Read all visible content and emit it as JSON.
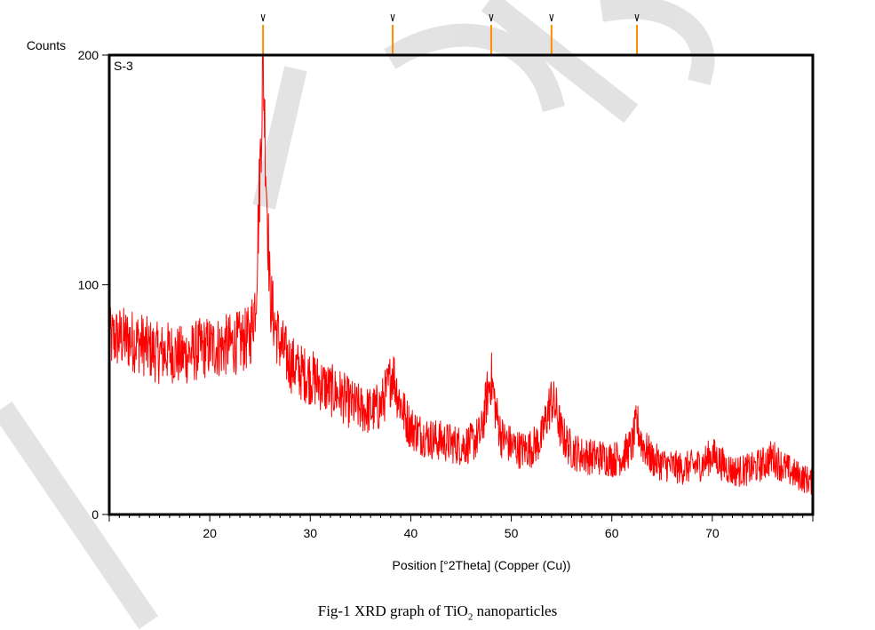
{
  "chart_data": {
    "type": "line",
    "sample_label": "S-3",
    "ylabel": "Counts",
    "xlabel": "Position [°2Theta] (Copper (Cu))",
    "xlim": [
      10,
      80
    ],
    "ylim": [
      0,
      200
    ],
    "x_ticks": [
      20,
      30,
      40,
      50,
      60,
      70
    ],
    "y_ticks": [
      0,
      100,
      200
    ],
    "line_color": "#ff0000",
    "reference_color": "#ff8c00",
    "reference_peaks": [
      25.3,
      38.2,
      48.0,
      54.0,
      62.5
    ],
    "series": [
      {
        "x": [
          10,
          11,
          12,
          13,
          14,
          15,
          16,
          17,
          18,
          19,
          20,
          21,
          22,
          23,
          24,
          24.6,
          25.0,
          25.3,
          25.6,
          26.0,
          26.5,
          27,
          28,
          29,
          30,
          31,
          32,
          33,
          34,
          35,
          36,
          37,
          37.8,
          38.2,
          38.7,
          39.5,
          40,
          41,
          42,
          43,
          44,
          45,
          46,
          47,
          47.6,
          48.0,
          48.5,
          49,
          50,
          51,
          52,
          53,
          53.6,
          54.0,
          54.5,
          55,
          56,
          57,
          58,
          59,
          60,
          61,
          62,
          62.5,
          63,
          64,
          65,
          66,
          67,
          68,
          69,
          70,
          71,
          72,
          73,
          74,
          75,
          76,
          77,
          78,
          79,
          80
        ],
        "y": [
          76,
          77,
          76,
          75,
          72,
          70,
          71,
          69,
          70,
          72,
          73,
          73,
          74,
          75,
          77,
          95,
          150,
          198,
          150,
          95,
          82,
          74,
          66,
          62,
          60,
          57,
          54,
          52,
          48,
          46,
          45,
          47,
          56,
          63,
          52,
          42,
          38,
          35,
          33,
          32,
          31,
          30,
          31,
          35,
          52,
          60,
          44,
          34,
          30,
          28,
          29,
          33,
          44,
          50,
          45,
          35,
          28,
          26,
          25,
          25,
          24,
          25,
          30,
          40,
          31,
          24,
          22,
          21,
          20,
          21,
          22,
          26,
          22,
          19,
          19,
          20,
          22,
          25,
          21,
          18,
          16,
          14
        ]
      }
    ]
  },
  "caption": {
    "prefix": "Fig-1 XRD graph of TiO",
    "subscript": "2",
    "suffix": " nanoparticles"
  },
  "watermark_text": "IJSER"
}
